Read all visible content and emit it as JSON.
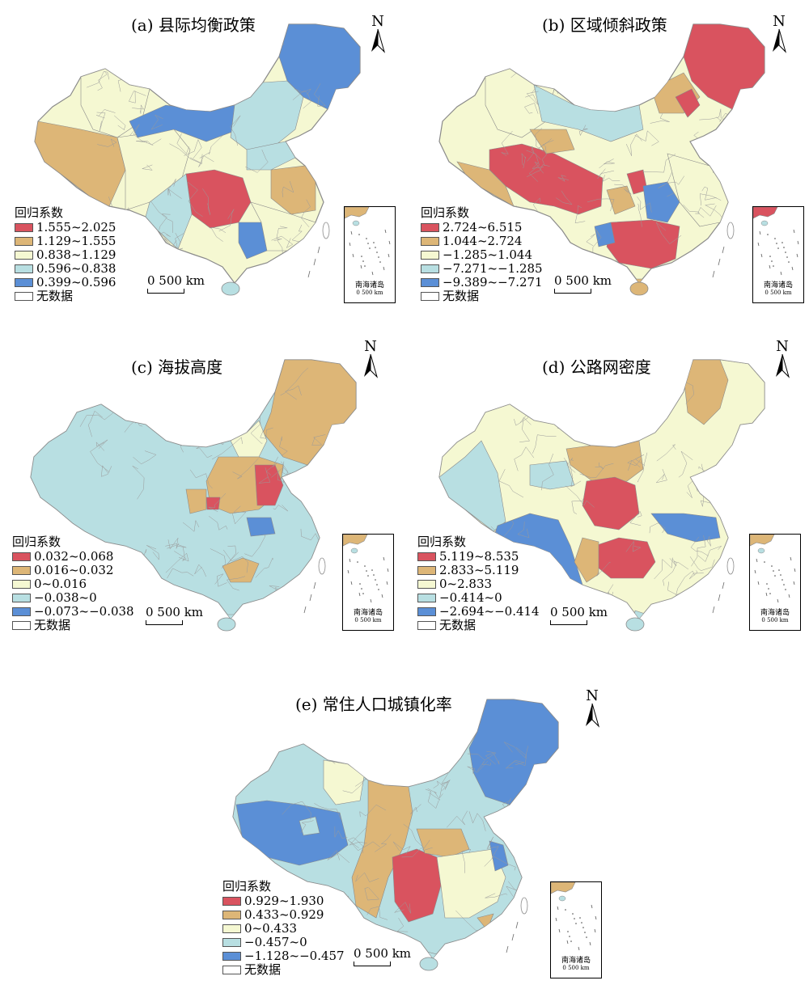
{
  "legend_title": "回归系数",
  "nodata_label": "无数据",
  "scale_label": "0   500 km",
  "north_label": "N",
  "inset_label": "南海诸岛",
  "inset_scale": "0   500 km",
  "colors": {
    "class1": "#d9535f",
    "class2": "#ddb677",
    "class3": "#f5f8d2",
    "class4": "#b8dfe2",
    "class5": "#5b8fd6",
    "nodata": "#ffffff",
    "border": "#8a8a8a"
  },
  "panels": [
    {
      "title": "(a) 县际均衡政策",
      "classes": [
        "1.555~2.025",
        "1.129~1.555",
        "0.838~1.129",
        "0.596~0.838",
        "0.399~0.596"
      ]
    },
    {
      "title": "(b) 区域倾斜政策",
      "classes": [
        "2.724~6.515",
        "1.044~2.724",
        "−1.285~1.044",
        "−7.271~−1.285",
        "−9.389~−7.271"
      ]
    },
    {
      "title": "(c) 海拔高度",
      "classes": [
        "0.032~0.068",
        "0.016~0.032",
        "0~0.016",
        "−0.038~0",
        "−0.073~−0.038"
      ]
    },
    {
      "title": "(d) 公路网密度",
      "classes": [
        "5.119~8.535",
        "2.833~5.119",
        "0~2.833",
        "−0.414~0",
        "−2.694~−0.414"
      ]
    },
    {
      "title": "(e) 常住人口城镇化率",
      "classes": [
        "0.929~1.930",
        "0.433~0.929",
        "0~0.433",
        "−0.457~0",
        "−1.128~−0.457"
      ]
    }
  ]
}
